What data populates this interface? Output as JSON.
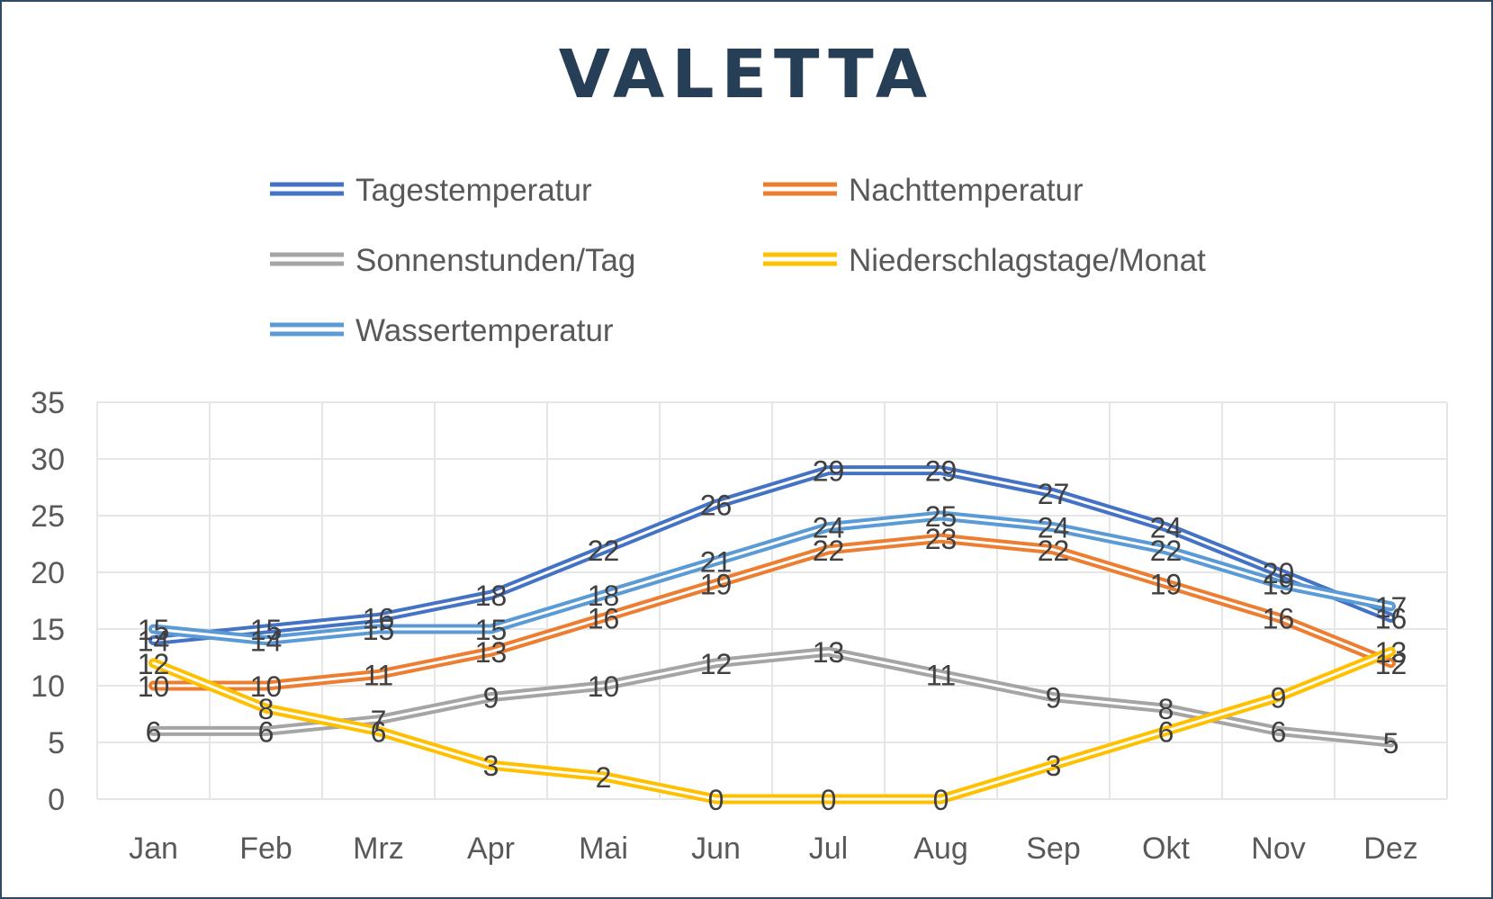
{
  "chart_data": {
    "type": "line",
    "title": "VALETTA",
    "xlabel": "",
    "ylabel": "",
    "ylim": [
      0,
      35
    ],
    "yticks": [
      "0",
      "5",
      "10",
      "15",
      "20",
      "25",
      "30",
      "35"
    ],
    "grid": true,
    "legend_position": "top",
    "categories": [
      "Jan",
      "Feb",
      "Mrz",
      "Apr",
      "Mai",
      "Jun",
      "Jul",
      "Aug",
      "Sep",
      "Okt",
      "Nov",
      "Dez"
    ],
    "series": [
      {
        "name": "Tagestemperatur",
        "color": "#4472c4",
        "values": [
          14,
          15,
          16,
          18,
          22,
          26,
          29,
          29,
          27,
          24,
          20,
          16
        ]
      },
      {
        "name": "Nachttemperatur",
        "color": "#ed7d31",
        "values": [
          10,
          10,
          11,
          13,
          16,
          19,
          22,
          23,
          22,
          19,
          16,
          12
        ]
      },
      {
        "name": "Sonnenstunden/Tag",
        "color": "#a5a5a5",
        "values": [
          6,
          6,
          7,
          9,
          10,
          12,
          13,
          11,
          9,
          8,
          6,
          5
        ]
      },
      {
        "name": "Niederschlagstage/Monat",
        "color": "#ffc000",
        "values": [
          12,
          8,
          6,
          3,
          2,
          0,
          0,
          0,
          3,
          6,
          9,
          13
        ]
      },
      {
        "name": "Wassertemperatur",
        "color": "#5b9bd5",
        "values": [
          15,
          14,
          15,
          15,
          18,
          21,
          24,
          25,
          24,
          22,
          19,
          17
        ]
      }
    ]
  }
}
